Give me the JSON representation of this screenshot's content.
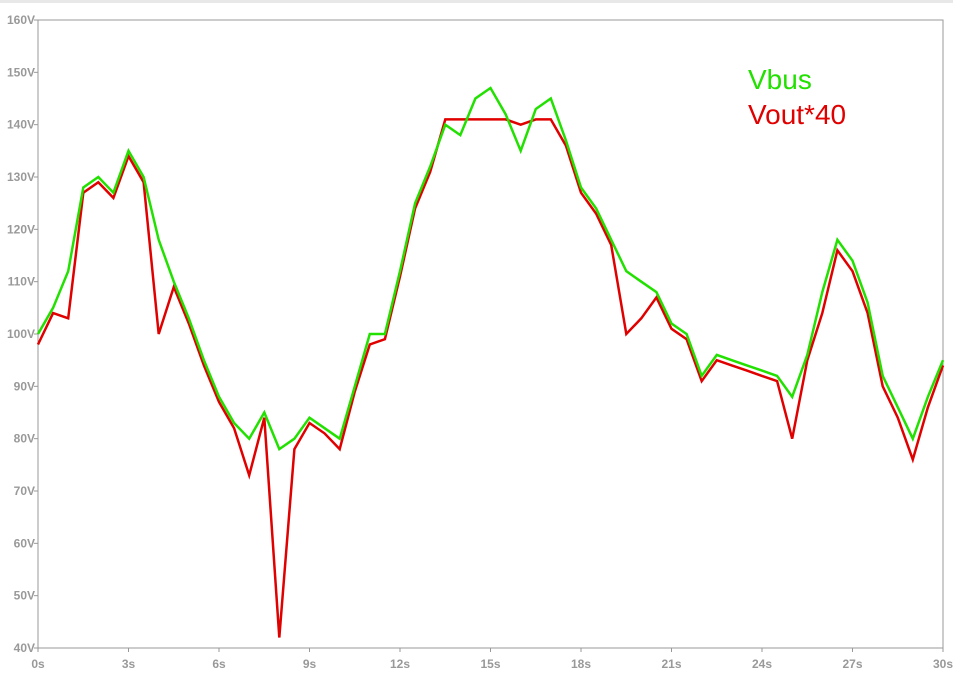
{
  "chart_data": {
    "type": "line",
    "x": [
      0,
      0.5,
      1,
      1.5,
      2,
      2.5,
      3,
      3.5,
      4,
      4.5,
      5,
      5.5,
      6,
      6.5,
      7,
      7.5,
      8,
      8.5,
      9,
      9.5,
      10,
      10.5,
      11,
      11.5,
      12,
      12.5,
      13,
      13.5,
      14,
      14.5,
      15,
      15.5,
      16,
      16.5,
      17,
      17.5,
      18,
      18.5,
      19,
      19.5,
      20,
      20.5,
      21,
      21.5,
      22,
      22.5,
      23,
      23.5,
      24,
      24.5,
      25,
      25.5,
      26,
      26.5,
      27,
      27.5,
      28,
      28.5,
      29,
      29.5,
      30
    ],
    "series": [
      {
        "name": "Vbus",
        "color": "#22e000",
        "values": [
          100,
          105,
          112,
          128,
          130,
          127,
          135,
          130,
          118,
          110,
          103,
          95,
          88,
          83,
          80,
          85,
          78,
          80,
          84,
          82,
          80,
          90,
          100,
          100,
          112,
          125,
          132,
          140,
          138,
          145,
          147,
          142,
          135,
          143,
          145,
          137,
          128,
          124,
          118,
          112,
          110,
          108,
          102,
          100,
          92,
          96,
          95,
          94,
          93,
          92,
          88,
          96,
          108,
          118,
          114,
          106,
          92,
          86,
          80,
          88,
          95
        ]
      },
      {
        "name": "Vout*40",
        "color": "#e00000",
        "values": [
          98,
          104,
          103,
          127,
          129,
          126,
          134,
          129,
          100,
          109,
          102,
          94,
          87,
          82,
          73,
          84,
          42,
          78,
          83,
          81,
          78,
          89,
          98,
          99,
          111,
          124,
          131,
          141,
          141,
          141,
          141,
          141,
          140,
          141,
          141,
          136,
          127,
          123,
          117,
          100,
          103,
          107,
          101,
          99,
          91,
          95,
          94,
          93,
          92,
          91,
          80,
          95,
          104,
          116,
          112,
          104,
          90,
          84,
          76,
          86,
          94
        ]
      }
    ],
    "xlim": [
      0,
      30
    ],
    "xticks": [
      {
        "value": 0,
        "label": "0s"
      },
      {
        "value": 3,
        "label": "3s"
      },
      {
        "value": 6,
        "label": "6s"
      },
      {
        "value": 9,
        "label": "9s"
      },
      {
        "value": 12,
        "label": "12s"
      },
      {
        "value": 15,
        "label": "15s"
      },
      {
        "value": 18,
        "label": "18s"
      },
      {
        "value": 21,
        "label": "21s"
      },
      {
        "value": 24,
        "label": "24s"
      },
      {
        "value": 27,
        "label": "27s"
      },
      {
        "value": 30,
        "label": "30s"
      }
    ],
    "ylim": [
      40,
      160
    ],
    "yticks": [
      {
        "value": 40,
        "label": "40V"
      },
      {
        "value": 50,
        "label": "50V"
      },
      {
        "value": 60,
        "label": "60V"
      },
      {
        "value": 70,
        "label": "70V"
      },
      {
        "value": 80,
        "label": "80V"
      },
      {
        "value": 90,
        "label": "90V"
      },
      {
        "value": 100,
        "label": "100V"
      },
      {
        "value": 110,
        "label": "110V"
      },
      {
        "value": 120,
        "label": "120V"
      },
      {
        "value": 130,
        "label": "130V"
      },
      {
        "value": 140,
        "label": "140V"
      },
      {
        "value": 150,
        "label": "150V"
      },
      {
        "value": 160,
        "label": "160V"
      }
    ]
  }
}
